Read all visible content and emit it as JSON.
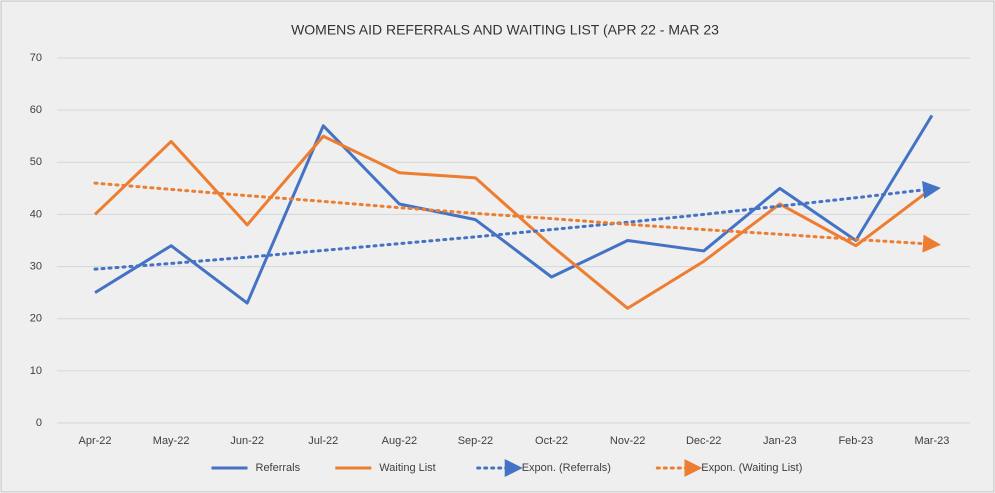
{
  "chart_data": {
    "type": "line",
    "title": "WOMENS AID REFERRALS AND WAITING LIST (APR 22 - MAR 23",
    "categories": [
      "Apr-22",
      "May-22",
      "Jun-22",
      "Jul-22",
      "Aug-22",
      "Sep-22",
      "Oct-22",
      "Nov-22",
      "Dec-22",
      "Jan-23",
      "Feb-23",
      "Mar-23"
    ],
    "series": [
      {
        "name": "Referrals",
        "color": "#4472c4",
        "style": "solid",
        "values": [
          25,
          34,
          23,
          57,
          42,
          39,
          28,
          35,
          33,
          45,
          35,
          59
        ]
      },
      {
        "name": "Waiting List",
        "color": "#ed7d31",
        "style": "solid",
        "values": [
          40,
          54,
          38,
          55,
          48,
          47,
          34,
          22,
          31,
          42,
          34,
          45
        ]
      },
      {
        "name": "Expon. (Referrals)",
        "color": "#4472c4",
        "style": "dotted",
        "values": [
          29.5,
          30.6,
          31.8,
          33.1,
          34.4,
          35.7,
          37.1,
          38.5,
          40.0,
          41.6,
          43.2,
          44.9
        ]
      },
      {
        "name": "Expon. (Waiting List)",
        "color": "#ed7d31",
        "style": "dotted",
        "values": [
          46,
          44.8,
          43.6,
          42.5,
          41.3,
          40.2,
          39.2,
          38.1,
          37.1,
          36.2,
          35.2,
          34.3
        ]
      }
    ],
    "ylim": [
      0,
      70
    ],
    "yticks": [
      0,
      10,
      20,
      30,
      40,
      50,
      60,
      70
    ],
    "grid": true,
    "legend": "bottom"
  }
}
